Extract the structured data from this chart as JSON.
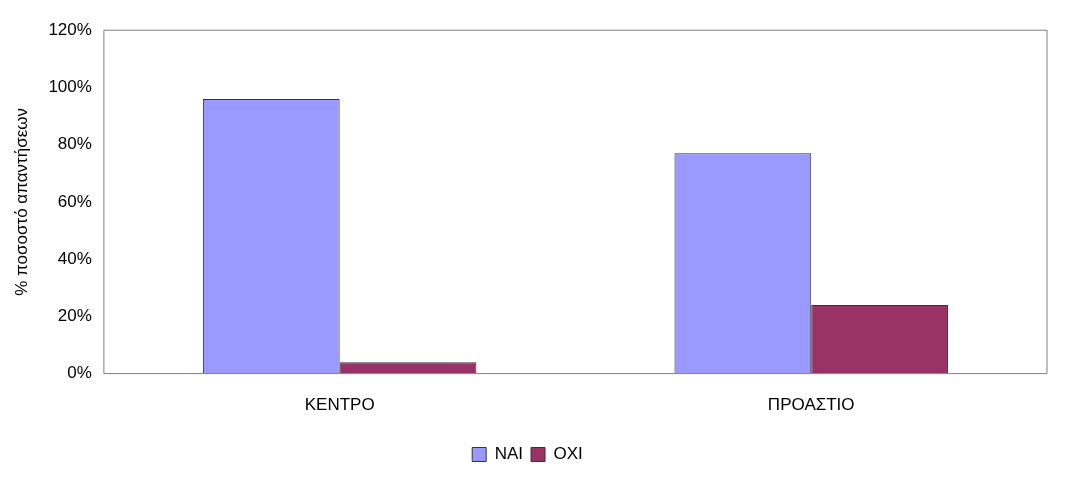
{
  "chart_data": {
    "type": "bar",
    "ylabel": "% ποσοστό απαντήσεων",
    "categories": [
      "ΚΕΝΤΡΟ",
      "ΠΡΟΑΣΤΙΟ"
    ],
    "series": [
      {
        "name": "ΝΑΙ",
        "color": "#9999ff",
        "values": [
          96,
          77
        ]
      },
      {
        "name": "ΟΧΙ",
        "color": "#993366",
        "values": [
          4,
          24
        ]
      }
    ],
    "ylim": [
      0,
      120
    ],
    "yticks": [
      {
        "value": 0,
        "label": "0%"
      },
      {
        "value": 20,
        "label": "20%"
      },
      {
        "value": 40,
        "label": "40%"
      },
      {
        "value": 60,
        "label": "60%"
      },
      {
        "value": 80,
        "label": "80%"
      },
      {
        "value": 100,
        "label": "100%"
      },
      {
        "value": 120,
        "label": "120%"
      }
    ],
    "grid": false,
    "legend": "bottom"
  }
}
